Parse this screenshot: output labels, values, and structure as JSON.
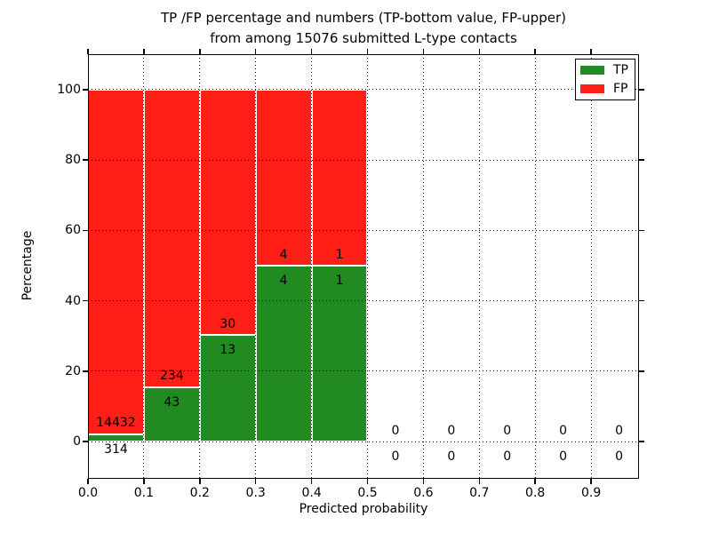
{
  "figure": {
    "title_lines": [
      "TP /FP percentage and numbers (TP-bottom value, FP-upper)",
      "from among 15076 submitted L-type contacts"
    ]
  },
  "chart_data": {
    "type": "bar",
    "stacked": true,
    "title": "TP /FP percentage and numbers (TP-bottom value, FP-upper)\nfrom among 15076 submitted L-type contacts",
    "xlabel": "Predicted probability",
    "ylabel": "Percentage",
    "total_submitted": 15076,
    "grid": "dotted",
    "xlim": [
      0,
      0.9857
    ],
    "ylim": [
      -10.6,
      110.1
    ],
    "x_ticks": [
      0.0,
      0.1,
      0.2,
      0.3,
      0.4,
      0.5,
      0.6,
      0.7,
      0.8,
      0.9
    ],
    "x_tick_labels": [
      "0.0",
      "0.1",
      "0.2",
      "0.3",
      "0.4",
      "0.5",
      "0.6",
      "0.7",
      "0.8",
      "0.9"
    ],
    "y_ticks": [
      0,
      20,
      40,
      60,
      80,
      100
    ],
    "y_tick_labels": [
      "0",
      "20",
      "40",
      "60",
      "80",
      "100"
    ],
    "legend": {
      "position": "upper right",
      "entries": [
        {
          "label": "TP",
          "color": "#218a21"
        },
        {
          "label": "FP",
          "color": "#ff1f17"
        }
      ]
    },
    "series": [
      {
        "name": "TP",
        "color": "#218a21",
        "counts": [
          314,
          43,
          13,
          4,
          1,
          0,
          0,
          0,
          0,
          0
        ]
      },
      {
        "name": "FP",
        "color": "#ff1f17",
        "counts": [
          14432,
          234,
          30,
          4,
          1,
          0,
          0,
          0,
          0,
          0
        ]
      }
    ],
    "bins": [
      {
        "x0": 0.0,
        "x1": 0.1,
        "tp": 314,
        "fp": 14432,
        "tp_pct": 2.13,
        "fp_pct": 97.87
      },
      {
        "x0": 0.1,
        "x1": 0.2,
        "tp": 43,
        "fp": 234,
        "tp_pct": 15.52,
        "fp_pct": 84.48
      },
      {
        "x0": 0.2,
        "x1": 0.3,
        "tp": 13,
        "fp": 30,
        "tp_pct": 30.23,
        "fp_pct": 69.77
      },
      {
        "x0": 0.3,
        "x1": 0.4,
        "tp": 4,
        "fp": 4,
        "tp_pct": 50.0,
        "fp_pct": 50.0
      },
      {
        "x0": 0.4,
        "x1": 0.5,
        "tp": 1,
        "fp": 1,
        "tp_pct": 50.0,
        "fp_pct": 50.0
      },
      {
        "x0": 0.5,
        "x1": 0.6,
        "tp": 0,
        "fp": 0,
        "tp_pct": 0,
        "fp_pct": 0
      },
      {
        "x0": 0.6,
        "x1": 0.7,
        "tp": 0,
        "fp": 0,
        "tp_pct": 0,
        "fp_pct": 0
      },
      {
        "x0": 0.7,
        "x1": 0.8,
        "tp": 0,
        "fp": 0,
        "tp_pct": 0,
        "fp_pct": 0
      },
      {
        "x0": 0.8,
        "x1": 0.9,
        "tp": 0,
        "fp": 0,
        "tp_pct": 0,
        "fp_pct": 0
      },
      {
        "x0": 0.9,
        "x1": 1.0,
        "tp": 0,
        "fp": 0,
        "tp_pct": 0,
        "fp_pct": 0
      }
    ]
  }
}
